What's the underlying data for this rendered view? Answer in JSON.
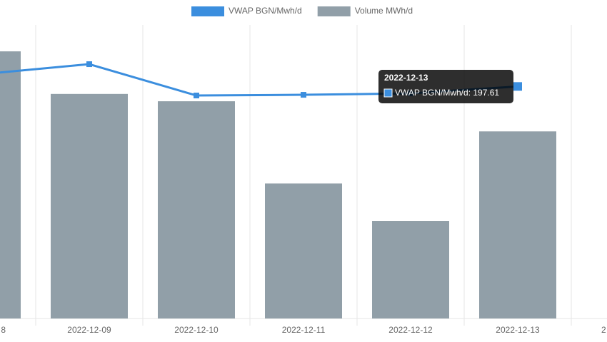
{
  "chart_data": {
    "type": "bar",
    "categories": [
      "8",
      "2022-12-09",
      "2022-12-10",
      "2022-12-11",
      "2022-12-12",
      "2022-12-13",
      "2"
    ],
    "series": [
      {
        "name": "VWAP BGN/Mwh/d",
        "color": "#3b8ede",
        "type": "line",
        "axis": "y2",
        "values": [
          208.1,
          216.6,
          189.9,
          190.5,
          191.7,
          197.61,
          null
        ]
      },
      {
        "name": "Volume MWh/d",
        "color": "#919fa8",
        "type": "bar",
        "values": [
          3640,
          3060,
          2960,
          1840,
          1330,
          2550,
          null
        ]
      }
    ],
    "ylim": [
      0,
      4000
    ],
    "y2lim": [
      0,
      250
    ],
    "legend": "top",
    "tooltip": {
      "title": "2022-12-13",
      "label": "VWAP BGN/Mwh/d: 197.61"
    }
  }
}
